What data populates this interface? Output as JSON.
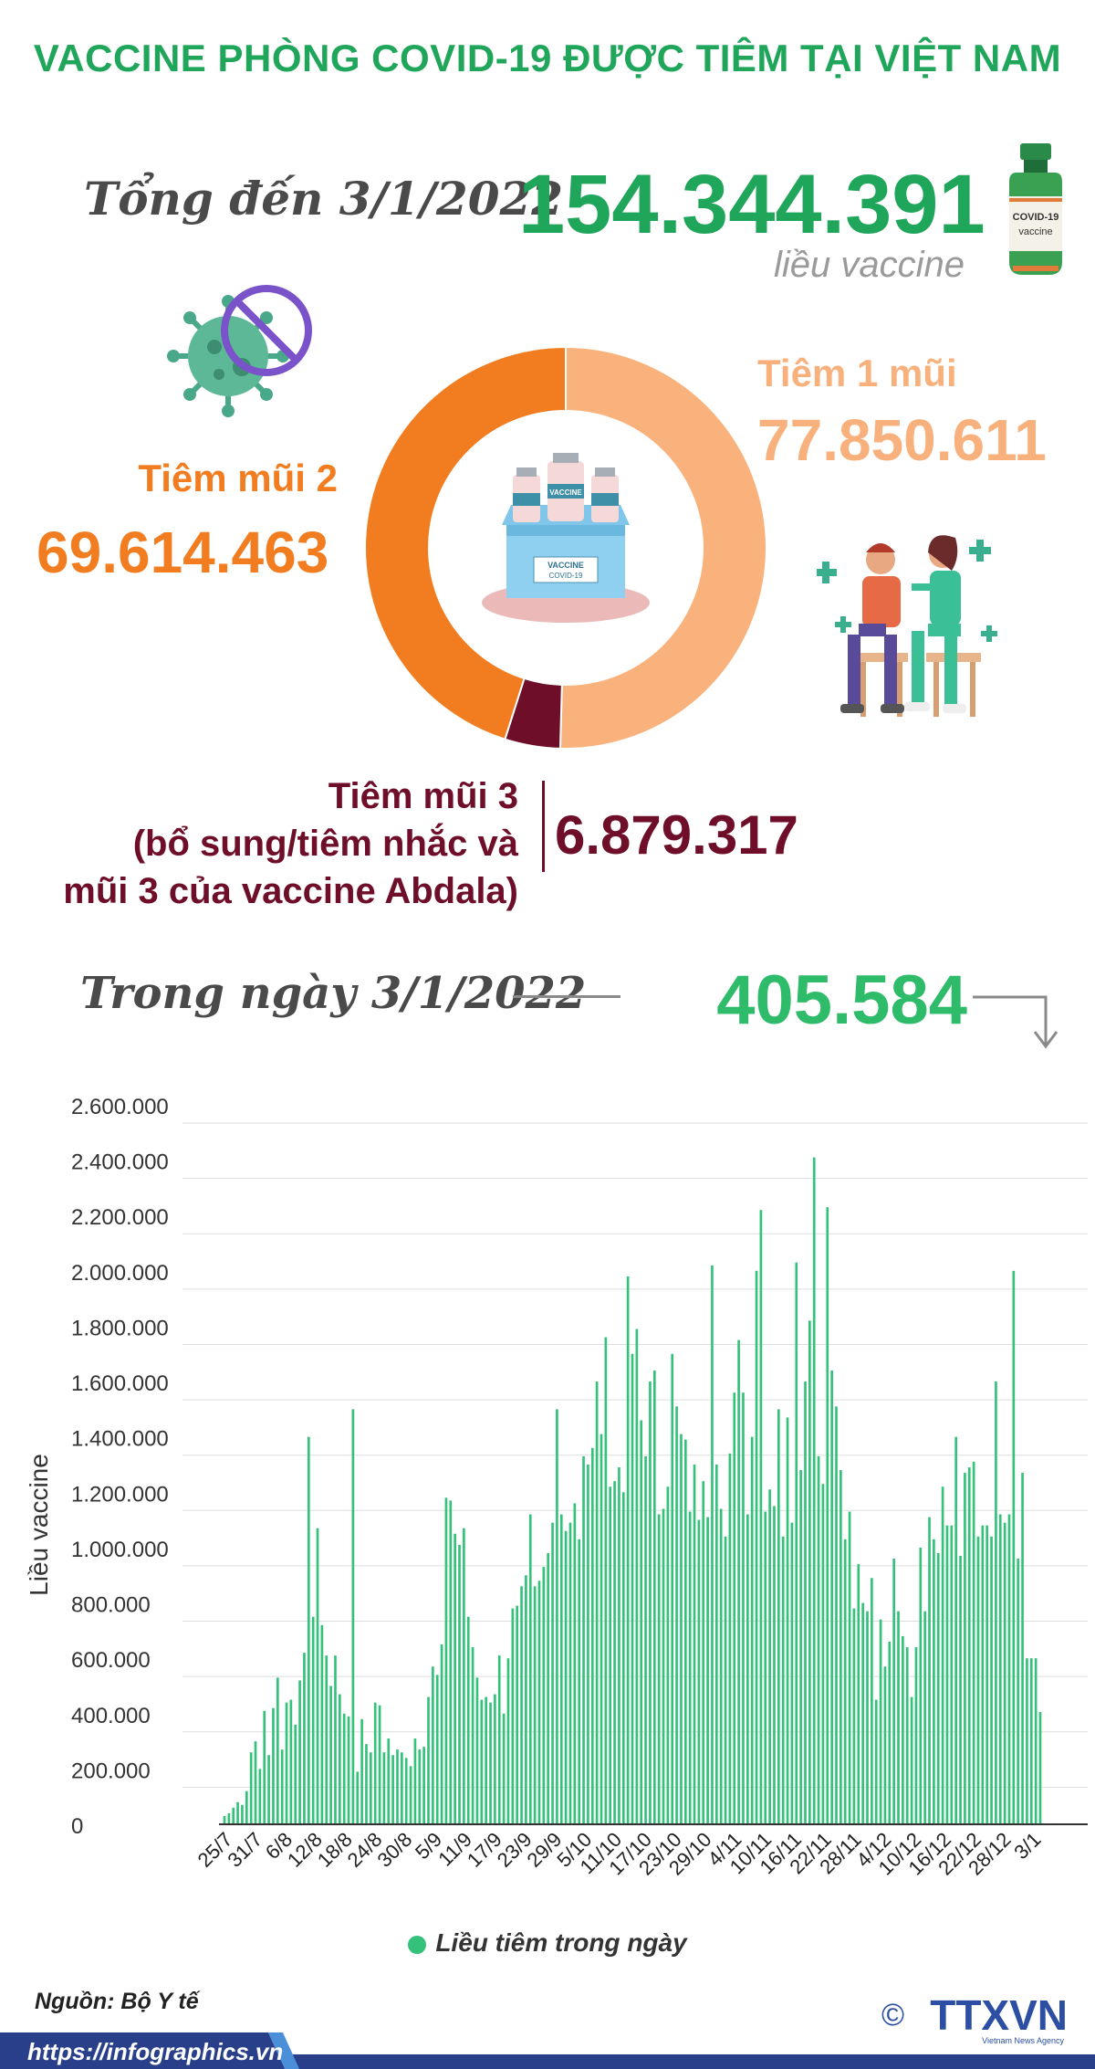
{
  "header": {
    "title": "VACCINE PHÒNG COVID-19 ĐƯỢC TIÊM TẠI VIỆT NAM",
    "total_label": "Tổng đến 3/1/2022",
    "total_value": "154.344.391",
    "total_unit": "liều vaccine",
    "vial_text_1": "COVID-19",
    "vial_text_2": "vaccine"
  },
  "doses": {
    "dose1_label": "Tiêm 1 mũi",
    "dose1_value": "77.850.611",
    "dose2_label": "Tiêm mũi 2",
    "dose2_value": "69.614.463",
    "dose3_label_line1": "Tiêm mũi 3",
    "dose3_label_line2": "(bổ sung/tiêm nhắc và",
    "dose3_label_line3": "mũi 3 của vaccine Abdala)",
    "dose3_value": "6.879.317",
    "box_label_1": "VACCINE",
    "box_label_2": "COVID-19",
    "bottle_label": "VACCINE"
  },
  "daily": {
    "label": "Trong ngày 3/1/2022",
    "value": "405.584"
  },
  "colors": {
    "dose1": "#f9b27c",
    "dose2": "#f27d20",
    "dose3": "#6e0e28",
    "bar": "#34c27a",
    "title": "#1fa65a"
  },
  "chart_data": {
    "type": "bar",
    "ylabel": "Liều vaccine",
    "ylim": [
      0,
      2600000
    ],
    "ytick_values": [
      0,
      200000,
      400000,
      600000,
      800000,
      1000000,
      1200000,
      1400000,
      1600000,
      1800000,
      2000000,
      2200000,
      2400000,
      2600000
    ],
    "ytick_labels": [
      "0",
      "200.000",
      "400.000",
      "600.000",
      "800.000",
      "1.000.000",
      "1.200.000",
      "1.400.000",
      "1.600.000",
      "1.800.000",
      "2.000.000",
      "2.200.000",
      "2.400.000",
      "2.600.000"
    ],
    "xtick_labels": [
      "25/7",
      "31/7",
      "6/8",
      "12/8",
      "18/8",
      "24/8",
      "30/8",
      "5/9",
      "11/9",
      "17/9",
      "23/9",
      "29/9",
      "5/10",
      "11/10",
      "17/10",
      "23/10",
      "29/10",
      "4/11",
      "10/11",
      "16/11",
      "22/11",
      "28/11",
      "4/12",
      "10/12",
      "16/12",
      "22/12",
      "28/12",
      "3/1"
    ],
    "legend": "Liều tiêm trong ngày",
    "grid": true,
    "series": [
      {
        "values": [
          30000,
          40000,
          60000,
          80000,
          70000,
          120000,
          260000,
          300000,
          200000,
          410000,
          250000,
          420000,
          530000,
          270000,
          440000,
          450000,
          360000,
          520000,
          620000,
          1400000,
          750000,
          1070000,
          720000,
          610000,
          500000,
          610000,
          470000,
          400000,
          390000,
          1500000,
          190000,
          380000,
          290000,
          260000,
          440000,
          430000,
          260000,
          310000,
          250000,
          270000,
          260000,
          240000,
          210000,
          310000,
          270000,
          280000,
          460000,
          570000,
          540000,
          650000,
          1180000,
          1170000,
          1050000,
          1010000,
          1070000,
          750000,
          640000,
          530000,
          450000,
          460000,
          440000,
          470000,
          610000,
          400000,
          600000,
          780000,
          790000,
          860000,
          900000,
          1120000,
          860000,
          880000,
          930000,
          980000,
          1090000,
          1500000,
          1120000,
          1060000,
          1090000,
          1160000,
          1030000,
          1330000,
          1300000,
          1360000,
          1600000,
          1410000,
          1760000,
          1220000,
          1240000,
          1290000,
          1200000,
          1980000,
          1700000,
          1790000,
          1460000,
          1330000,
          1600000,
          1640000,
          1120000,
          1140000,
          1220000,
          1700000,
          1510000,
          1410000,
          1390000,
          1130000,
          1300000,
          1100000,
          1240000,
          1110000,
          2020000,
          1300000,
          1140000,
          1040000,
          1340000,
          1560000,
          1750000,
          1560000,
          1120000,
          1400000,
          2000000,
          2220000,
          1130000,
          1210000,
          1150000,
          1500000,
          1040000,
          1470000,
          1090000,
          2030000,
          1280000,
          1600000,
          1820000,
          2410000,
          1330000,
          1230000,
          2230000,
          1640000,
          1510000,
          1280000,
          1030000,
          1130000,
          780000,
          940000,
          800000,
          770000,
          890000,
          450000,
          740000,
          570000,
          660000,
          960000,
          770000,
          680000,
          640000,
          460000,
          640000,
          1000000,
          770000,
          1110000,
          1030000,
          980000,
          1220000,
          1080000,
          1080000,
          1400000,
          970000,
          1270000,
          1290000,
          1310000,
          1040000,
          1080000,
          1080000,
          1040000,
          1600000,
          1120000,
          1090000,
          1120000,
          2000000,
          960000,
          1270000,
          600000,
          600000,
          600000,
          405584
        ]
      }
    ]
  },
  "footer": {
    "source": "Nguồn: Bộ Y tế",
    "url": "https://infographics.vn",
    "logo": "TTXVN",
    "logo_sub": "Vietnam News Agency",
    "copyright": "©"
  }
}
